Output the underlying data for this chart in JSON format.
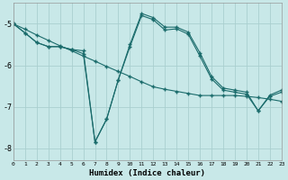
{
  "xlabel": "Humidex (Indice chaleur)",
  "bg_color": "#c8e8e8",
  "line_color": "#1a6b6b",
  "grid_color": "#aacfcf",
  "xlim": [
    0,
    23
  ],
  "ylim": [
    -8.3,
    -4.5
  ],
  "yticks": [
    -8,
    -7,
    -6,
    -5
  ],
  "xticks": [
    0,
    1,
    2,
    3,
    4,
    5,
    6,
    7,
    8,
    9,
    10,
    11,
    12,
    13,
    14,
    15,
    16,
    17,
    18,
    19,
    20,
    21,
    22,
    23
  ],
  "trend_x": [
    0,
    1,
    2,
    3,
    4,
    5,
    6,
    7,
    8,
    9,
    10,
    11,
    12,
    13,
    14,
    15,
    16,
    17,
    18,
    19,
    20,
    21,
    22,
    23
  ],
  "trend_y": [
    -5.0,
    -5.13,
    -5.27,
    -5.4,
    -5.53,
    -5.65,
    -5.78,
    -5.9,
    -6.03,
    -6.15,
    -6.27,
    -6.4,
    -6.52,
    -6.58,
    -6.63,
    -6.68,
    -6.73,
    -6.73,
    -6.73,
    -6.73,
    -6.75,
    -6.78,
    -6.82,
    -6.87
  ],
  "wavy_x": [
    0,
    1,
    2,
    3,
    4,
    5,
    6,
    7,
    8,
    9,
    10,
    11,
    12,
    13,
    14,
    15,
    16,
    17,
    18,
    19,
    20,
    21,
    22,
    23
  ],
  "wavy_y": [
    -5.0,
    -5.22,
    -5.45,
    -5.55,
    -5.55,
    -5.62,
    -5.65,
    -7.85,
    -7.3,
    -6.35,
    -5.5,
    -4.75,
    -4.85,
    -5.08,
    -5.08,
    -5.2,
    -5.7,
    -6.27,
    -6.55,
    -6.6,
    -6.65,
    -7.1,
    -6.72,
    -6.6
  ],
  "band_x": [
    0,
    1,
    2,
    3,
    4,
    5,
    6,
    7,
    8,
    9,
    10,
    11,
    12,
    13,
    14,
    15,
    16,
    17,
    18,
    19,
    20,
    21,
    22,
    23
  ],
  "band_y": [
    -5.0,
    -5.22,
    -5.45,
    -5.55,
    -5.55,
    -5.62,
    -5.72,
    -7.85,
    -7.3,
    -6.35,
    -5.55,
    -4.8,
    -4.9,
    -5.15,
    -5.12,
    -5.25,
    -5.78,
    -6.33,
    -6.6,
    -6.65,
    -6.7,
    -7.1,
    -6.75,
    -6.65
  ]
}
